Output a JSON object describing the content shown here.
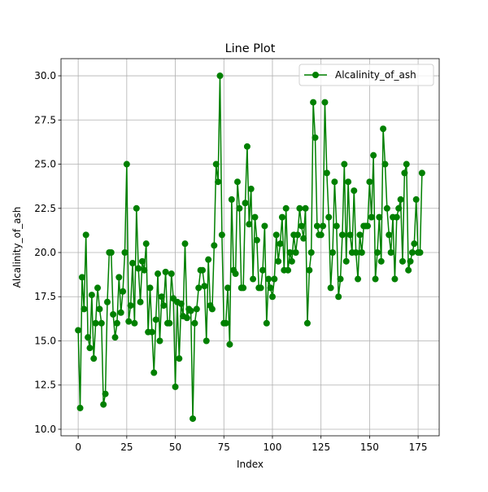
{
  "chart_data": {
    "type": "line",
    "title": "Line Plot",
    "xlabel": "Index",
    "ylabel": "Alcalinity_of_ash",
    "x": [
      0,
      1,
      2,
      3,
      4,
      5,
      6,
      7,
      8,
      9,
      10,
      11,
      12,
      13,
      14,
      15,
      16,
      17,
      18,
      19,
      20,
      21,
      22,
      23,
      24,
      25,
      26,
      27,
      28,
      29,
      30,
      31,
      32,
      33,
      34,
      35,
      36,
      37,
      38,
      39,
      40,
      41,
      42,
      43,
      44,
      45,
      46,
      47,
      48,
      49,
      50,
      51,
      52,
      53,
      54,
      55,
      56,
      57,
      58,
      59,
      60,
      61,
      62,
      63,
      64,
      65,
      66,
      67,
      68,
      69,
      70,
      71,
      72,
      73,
      74,
      75,
      76,
      77,
      78,
      79,
      80,
      81,
      82,
      83,
      84,
      85,
      86,
      87,
      88,
      89,
      90,
      91,
      92,
      93,
      94,
      95,
      96,
      97,
      98,
      99,
      100,
      101,
      102,
      103,
      104,
      105,
      106,
      107,
      108,
      109,
      110,
      111,
      112,
      113,
      114,
      115,
      116,
      117,
      118,
      119,
      120,
      121,
      122,
      123,
      124,
      125,
      126,
      127,
      128,
      129,
      130,
      131,
      132,
      133,
      134,
      135,
      136,
      137,
      138,
      139,
      140,
      141,
      142,
      143,
      144,
      145,
      146,
      147,
      148,
      149,
      150,
      151,
      152,
      153,
      154,
      155,
      156,
      157,
      158,
      159,
      160,
      161,
      162,
      163,
      164,
      165,
      166,
      167,
      168,
      169,
      170,
      171,
      172,
      173,
      174,
      175,
      176,
      177
    ],
    "series": [
      {
        "name": "Alcalinity_of_ash",
        "color": "#008000",
        "values": [
          15.6,
          11.2,
          18.6,
          16.8,
          21,
          15.2,
          14.6,
          17.6,
          14,
          16,
          18,
          16.8,
          16,
          11.4,
          12,
          17.2,
          20,
          20,
          16.5,
          15.2,
          16,
          18.6,
          16.6,
          17.8,
          20,
          25,
          16.1,
          17,
          19.4,
          16,
          22.5,
          19.1,
          17.2,
          19.5,
          19,
          20.5,
          15.5,
          18,
          15.5,
          13.2,
          16.2,
          18.8,
          15,
          17.5,
          17,
          18.9,
          16,
          16,
          18.8,
          17.4,
          12.4,
          17.2,
          14,
          17.1,
          16.4,
          20.5,
          16.3,
          16.8,
          16.7,
          10.6,
          16,
          16.8,
          18,
          19,
          19,
          18.1,
          15,
          19.6,
          17,
          16.8,
          20.4,
          25,
          24,
          30,
          21,
          16,
          16,
          18,
          14.8,
          23,
          19,
          18.8,
          24,
          22.5,
          18,
          18,
          22.8,
          26,
          21.6,
          23.6,
          18.5,
          22,
          20.7,
          18,
          18,
          19,
          21.5,
          16,
          18.5,
          18,
          17.5,
          18.5,
          21,
          19.5,
          20.5,
          22,
          19,
          22.5,
          19,
          20,
          19.5,
          21,
          20,
          21,
          22.5,
          21.5,
          20.8,
          22.5,
          16,
          19,
          20,
          28.5,
          26.5,
          21.5,
          21,
          21,
          21.5,
          28.5,
          24.5,
          22,
          18,
          20,
          24,
          21.5,
          17.5,
          18.5,
          21,
          25,
          19.5,
          24,
          21,
          20,
          23.5,
          20,
          18.5,
          21,
          20,
          21.5,
          21.5,
          21.5,
          24,
          22,
          25.5,
          18.5,
          20,
          22,
          19.5,
          27,
          25,
          22.5,
          21,
          20,
          22,
          18.5,
          22,
          22.5,
          23,
          19.5,
          24.5,
          25,
          19,
          19.5,
          20,
          20.5,
          23,
          20,
          20,
          24.5
        ]
      }
    ],
    "xlim": [
      -8.85,
      185.85
    ],
    "xticks": [
      0,
      25,
      50,
      75,
      100,
      125,
      150,
      175
    ],
    "ylim": [
      9.63,
      30.97
    ],
    "yticks": [
      {
        "value": 10,
        "label": "10.0"
      },
      12.5,
      {
        "value": 15,
        "label": "15.0"
      },
      17.5,
      {
        "value": 20,
        "label": "20.0"
      },
      22.5,
      {
        "value": 25,
        "label": "25.0"
      },
      27.5,
      {
        "value": 30,
        "label": "30.0"
      }
    ],
    "grid": true,
    "legend": "upper right"
  }
}
